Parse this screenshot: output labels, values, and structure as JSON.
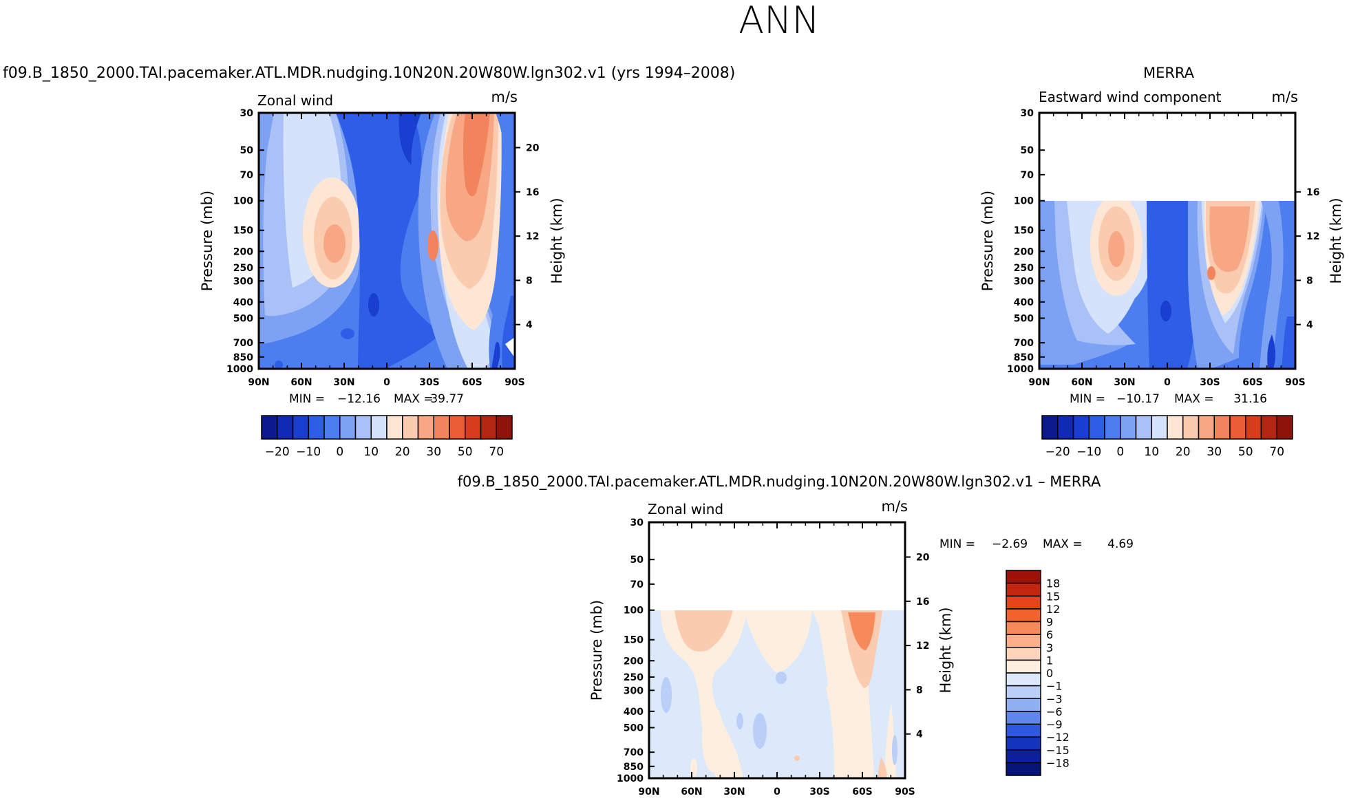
{
  "page_title": "ANN",
  "chart_data": [
    {
      "type": "contour",
      "id": "model",
      "title": "f09.B_1850_2000.TAI.pacemaker.ATL.MDR.nudging.10N20N.20W80W.lgn302.v1 (yrs 1994–2008)",
      "field_label": "Zonal wind",
      "units": "m/s",
      "ylabel": "Pressure (mb)",
      "ylabel_right": "Height (km)",
      "y_ticks": [
        "30",
        "50",
        "70",
        "100",
        "150",
        "200",
        "250",
        "300",
        "400",
        "500",
        "700",
        "850",
        "1000"
      ],
      "y_right_ticks": [
        "20",
        "16",
        "12",
        "8",
        "4"
      ],
      "x_ticks": [
        "90N",
        "60N",
        "30N",
        "0",
        "30S",
        "60S",
        "90S"
      ],
      "top_pressure": 30,
      "min_label": "MIN =",
      "min_value": "−12.16",
      "max_label": "MAX =",
      "max_value": "39.77",
      "colorbar_labels": [
        "−20",
        "−10",
        "0",
        "10",
        "20",
        "30",
        "50",
        "70"
      ]
    },
    {
      "type": "contour",
      "id": "obs",
      "title": "MERRA",
      "field_label": "Eastward wind component",
      "units": "m/s",
      "ylabel": "Pressure (mb)",
      "ylabel_right": "Height (km)",
      "y_ticks": [
        "30",
        "50",
        "70",
        "100",
        "150",
        "200",
        "250",
        "300",
        "400",
        "500",
        "700",
        "850",
        "1000"
      ],
      "y_right_ticks": [
        "16",
        "12",
        "8",
        "4"
      ],
      "x_ticks": [
        "90N",
        "60N",
        "30N",
        "0",
        "30S",
        "60S",
        "90S"
      ],
      "top_pressure": 100,
      "min_label": "MIN =",
      "min_value": "−10.17",
      "max_label": "MAX =",
      "max_value": "31.16",
      "colorbar_labels": [
        "−20",
        "−10",
        "0",
        "10",
        "20",
        "30",
        "50",
        "70"
      ]
    },
    {
      "type": "contour",
      "id": "diff",
      "title": "f09.B_1850_2000.TAI.pacemaker.ATL.MDR.nudging.10N20N.20W80W.lgn302.v1 – MERRA",
      "field_label": "Zonal wind",
      "units": "m/s",
      "ylabel": "Pressure (mb)",
      "ylabel_right": "Height (km)",
      "y_ticks": [
        "30",
        "50",
        "70",
        "100",
        "150",
        "200",
        "250",
        "300",
        "400",
        "500",
        "700",
        "850",
        "1000"
      ],
      "y_right_ticks": [
        "20",
        "16",
        "12",
        "8",
        "4"
      ],
      "x_ticks": [
        "90N",
        "60N",
        "30N",
        "0",
        "30S",
        "60S",
        "90S"
      ],
      "top_pressure": 100,
      "min_label": "MIN =",
      "min_value": "−2.69",
      "max_label": "MAX =",
      "max_value": "4.69",
      "colorbar_labels": [
        "18",
        "15",
        "12",
        "9",
        "6",
        "3",
        "1",
        "0",
        "−1",
        "−3",
        "−6",
        "−9",
        "−12",
        "−15",
        "−18"
      ]
    }
  ],
  "colors": {
    "absolute_scale": [
      "#0a1a8c",
      "#102ab4",
      "#1a3fd0",
      "#2f5ee6",
      "#4d7ef0",
      "#7da2f3",
      "#a9c1f6",
      "#d4e2fb",
      "#fde7d4",
      "#fbcbb0",
      "#f7a784",
      "#f2845d",
      "#ea5d35",
      "#d73d1c",
      "#b32612",
      "#8c140a"
    ],
    "difference_scale": [
      "#9c1208",
      "#c3260e",
      "#e24516",
      "#f2622c",
      "#f78a5a",
      "#fbb08c",
      "#fdd3bb",
      "#fdeedf",
      "#dbe9fb",
      "#b9cff7",
      "#90b0f2",
      "#5f86ea",
      "#2f59dc",
      "#1534bc",
      "#0b209a",
      "#061377"
    ]
  }
}
